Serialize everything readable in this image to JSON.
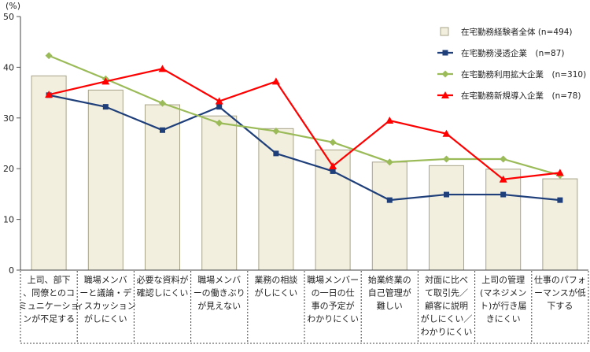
{
  "chart_data": {
    "type": "bar",
    "unit_label": "(%)",
    "ylim": [
      0,
      50
    ],
    "yticks": [
      0,
      10,
      20,
      30,
      40,
      50
    ],
    "grid": false,
    "legend_position": "top-right",
    "categories": [
      [
        "上司、部下",
        "、同僚とのコ",
        "ミュニケーショ",
        "ンが不足する"
      ],
      [
        "職場メンバ",
        "ーと議論・デ",
        "ィスカッション",
        "がしにくい"
      ],
      [
        "必要な資料が",
        "確認しにくい"
      ],
      [
        "職場メンバ",
        "ーの働きぶり",
        "が見えない"
      ],
      [
        "業務の相談",
        "がしにくい"
      ],
      [
        "職場メンバー",
        "の一日の仕",
        "事の予定が",
        "わかりにくい"
      ],
      [
        "始業終業の",
        "自己管理が",
        "難しい"
      ],
      [
        "対面に比べ",
        "て取引先／",
        "顧客に説明",
        "がしにくい／",
        "わかりにくい"
      ],
      [
        "上司の管理",
        "(マネジメン",
        "ト)が行き届",
        "きにくい"
      ],
      [
        "仕事のパフォ",
        "ーマンスが低",
        "下する"
      ]
    ],
    "bar_series": {
      "name": "在宅勤務経験者全体 (n=494)",
      "color": "#f2efdf",
      "stroke": "#a8a48a",
      "values": [
        38.3,
        35.5,
        32.6,
        30.4,
        27.9,
        23.7,
        21.3,
        20.6,
        19.9,
        18.0
      ]
    },
    "line_series": [
      {
        "name": "在宅勤務浸透企業　(n=87)",
        "color": "#1f3f7a",
        "marker": "square",
        "values": [
          34.5,
          32.2,
          27.6,
          32.2,
          23.0,
          19.5,
          13.8,
          14.9,
          14.9,
          13.8
        ]
      },
      {
        "name": "在宅勤務利用拡大企業　(n=310)",
        "color": "#9bbb59",
        "marker": "diamond",
        "values": [
          42.3,
          37.7,
          32.9,
          29.0,
          27.4,
          25.2,
          21.3,
          21.9,
          21.9,
          18.7
        ]
      },
      {
        "name": "在宅勤務新規導入企業　(n=78)",
        "color": "#ff0000",
        "marker": "triangle",
        "values": [
          34.6,
          37.2,
          39.7,
          33.3,
          37.2,
          20.5,
          29.5,
          26.9,
          17.9,
          19.2
        ]
      }
    ]
  }
}
